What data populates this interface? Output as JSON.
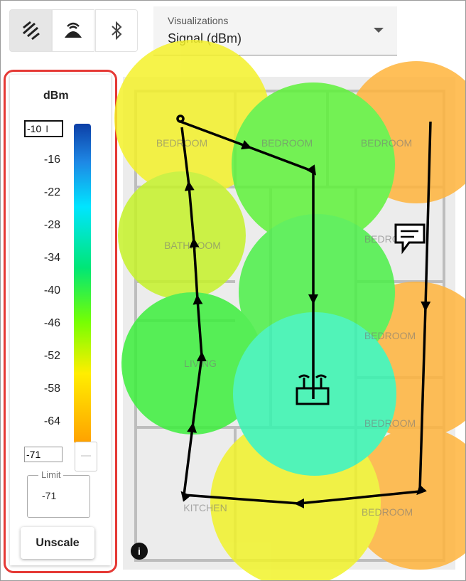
{
  "toolbar": {
    "visualizations_label": "Visualizations",
    "visualization_selected": "Signal (dBm)"
  },
  "legend": {
    "unit": "dBm",
    "max_input": "-10",
    "scale_labels": [
      "-16",
      "-22",
      "-28",
      "-34",
      "-40",
      "-46",
      "-52",
      "-58",
      "-64"
    ],
    "min_input": "-71",
    "limit_label": "Limit",
    "limit_value": "-71",
    "button": "Unscale"
  },
  "map": {
    "rooms": [
      "BEDROOM",
      "BEDROOM",
      "BEDROOM",
      "BATHROOM",
      "BEDROOM",
      "BEDROOM",
      "LIVING",
      "BEDROOM",
      "KITCHEN",
      "BEDROOM"
    ]
  }
}
